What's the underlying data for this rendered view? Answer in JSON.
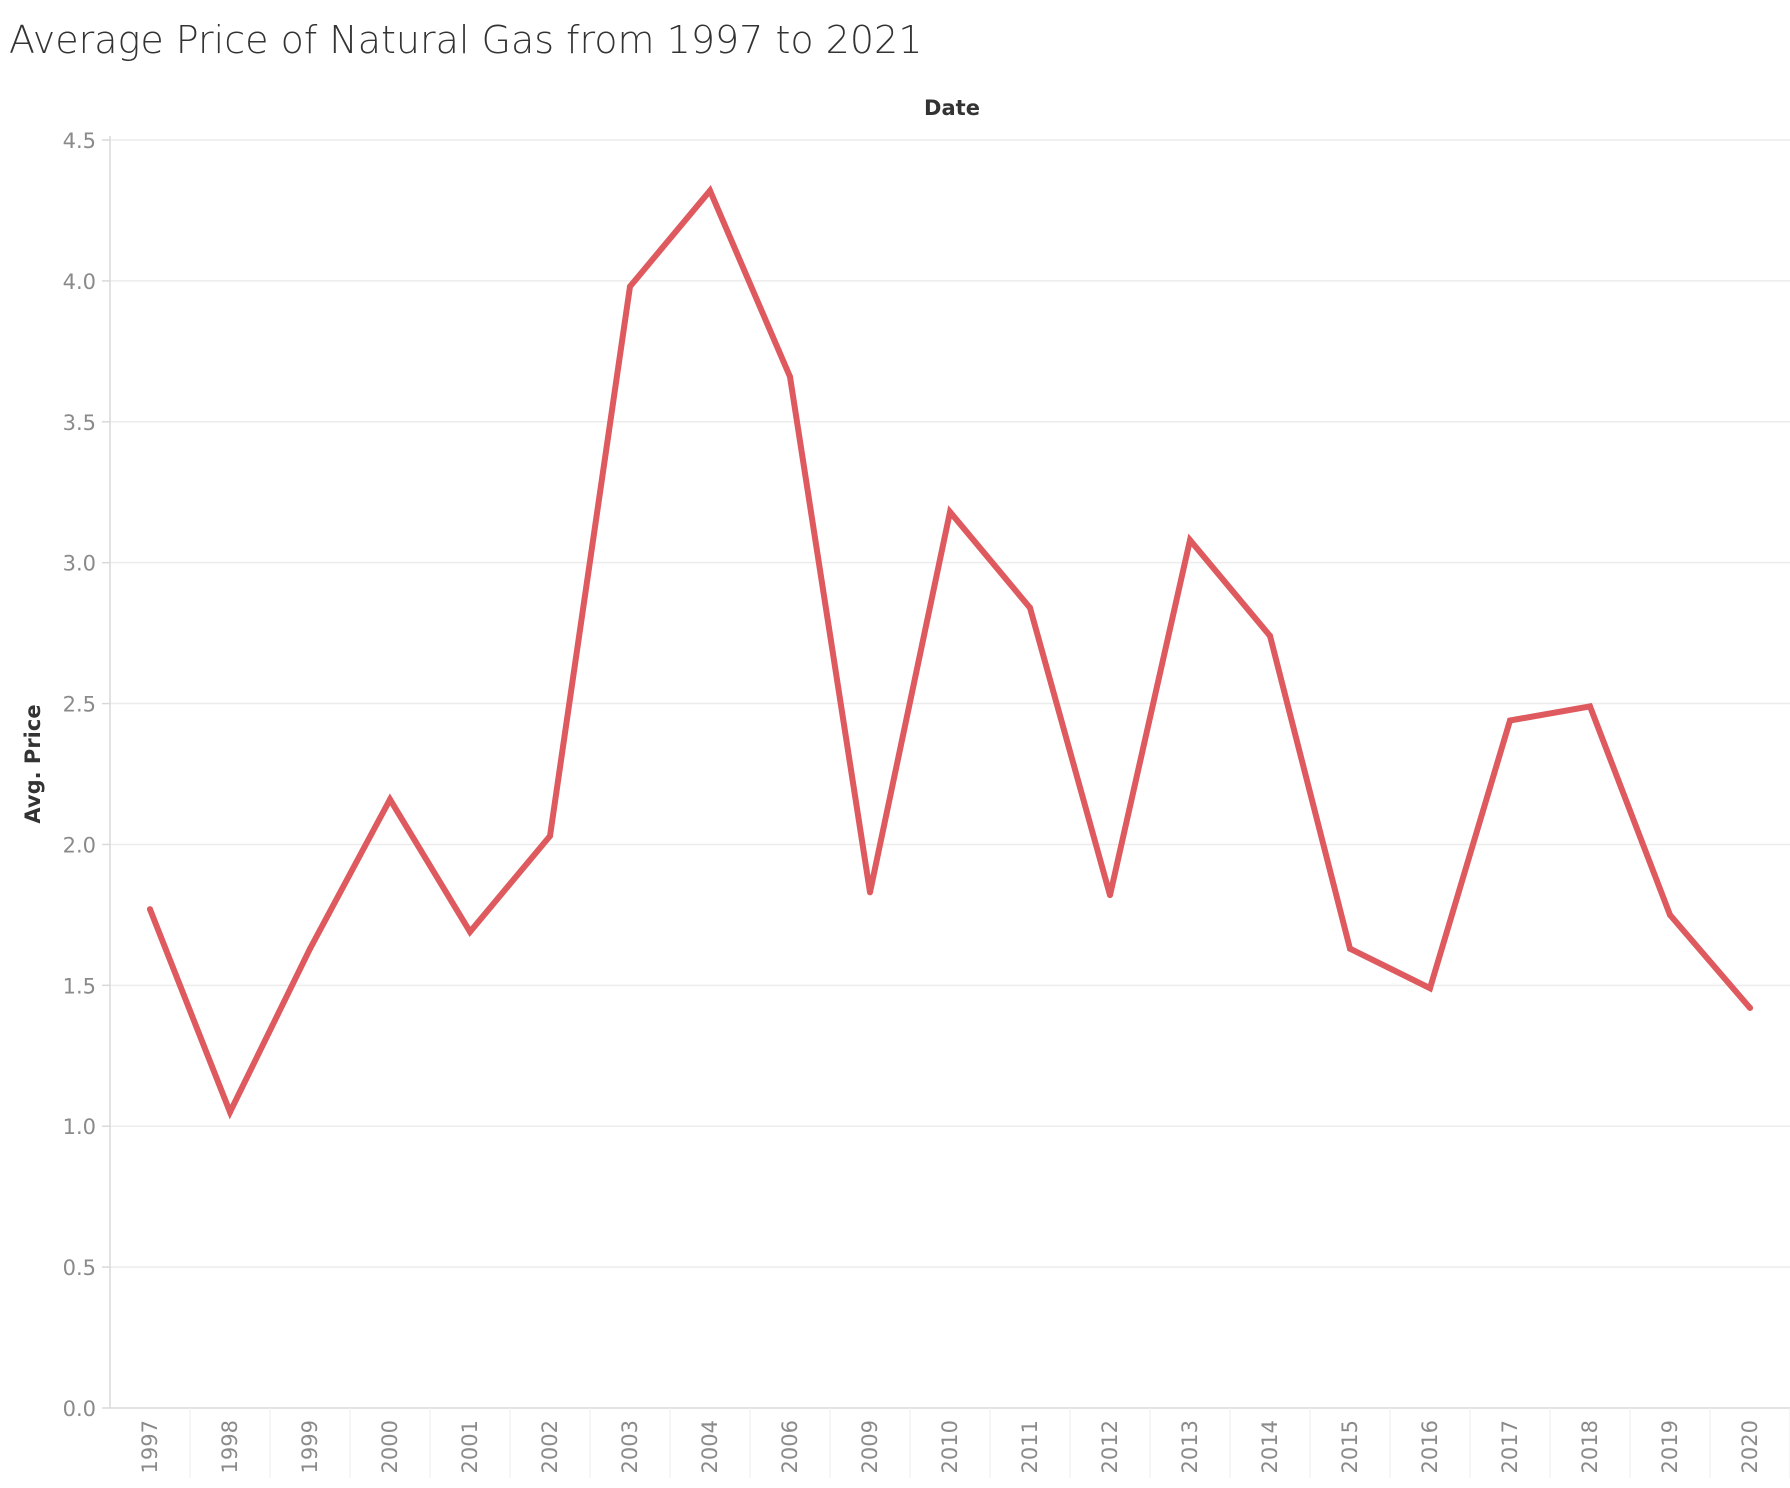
{
  "chart_data": {
    "type": "line",
    "title": "Average Price of Natural Gas from 1997 to 2021",
    "xlabel": "Date",
    "ylabel": "Avg. Price",
    "categories": [
      "1997",
      "1998",
      "1999",
      "2000",
      "2001",
      "2002",
      "2003",
      "2004",
      "2006",
      "2009",
      "2010",
      "2011",
      "2012",
      "2013",
      "2014",
      "2015",
      "2016",
      "2017",
      "2018",
      "2019",
      "2020"
    ],
    "series": [
      {
        "values": [
          1.77,
          1.05,
          1.63,
          2.16,
          1.69,
          2.03,
          3.98,
          4.32,
          3.66,
          1.83,
          3.18,
          2.84,
          1.82,
          3.08,
          2.74,
          1.63,
          1.49,
          2.44,
          2.49,
          1.75,
          1.42
        ],
        "color": "#de5a5e"
      }
    ],
    "ylim": [
      0,
      4.5
    ],
    "yticks": [
      "0.0",
      "0.5",
      "1.0",
      "1.5",
      "2.0",
      "2.5",
      "3.0",
      "3.5",
      "4.0",
      "4.5"
    ],
    "grid": true,
    "x_tick_orientation": "vertical"
  }
}
